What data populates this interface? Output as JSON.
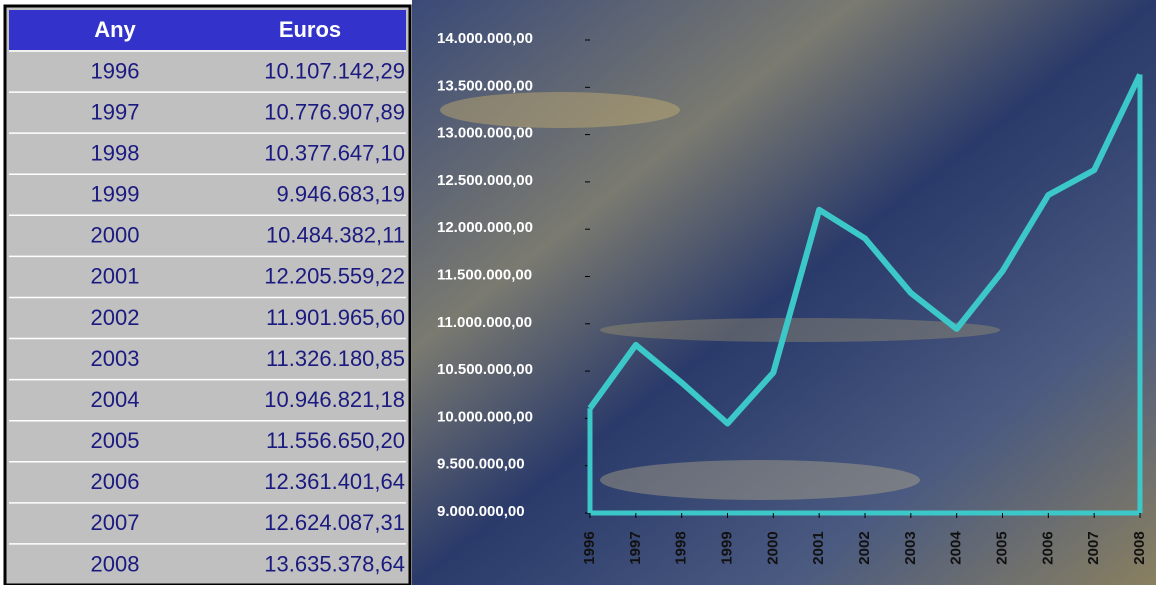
{
  "table": {
    "header": [
      "Any",
      "Euros"
    ],
    "rows": [
      [
        "1996",
        "10.107.142,29"
      ],
      [
        "1997",
        "10.776.907,89"
      ],
      [
        "1998",
        "10.377.647,10"
      ],
      [
        "1999",
        "9.946.683,19"
      ],
      [
        "2000",
        "10.484.382,11"
      ],
      [
        "2001",
        "12.205.559,22"
      ],
      [
        "2002",
        "11.901.965,60"
      ],
      [
        "2003",
        "11.326.180,85"
      ],
      [
        "2004",
        "10.946.821,18"
      ],
      [
        "2005",
        "11.556.650,20"
      ],
      [
        "2006",
        "12.361.401,64"
      ],
      [
        "2007",
        "12.624.087,31"
      ],
      [
        "2008",
        "13.635.378,64"
      ]
    ]
  },
  "chart_data": {
    "type": "line",
    "color": "#3cc8c8",
    "categories": [
      "1996",
      "1997",
      "1998",
      "1999",
      "2000",
      "2001",
      "2002",
      "2003",
      "2004",
      "2005",
      "2006",
      "2007",
      "2008"
    ],
    "values": [
      10107142.29,
      10776907.89,
      10377647.1,
      9946683.19,
      10484382.11,
      12205559.22,
      11901965.6,
      11326180.85,
      10946821.18,
      11556650.2,
      12361401.64,
      12624087.31,
      13635378.64
    ],
    "ylim": [
      9000000,
      14000000
    ],
    "yticks": [
      {
        "value": 9000000,
        "label": "9.000.000,00"
      },
      {
        "value": 9500000,
        "label": "9.500.000,00"
      },
      {
        "value": 10000000,
        "label": "10.000.000,00"
      },
      {
        "value": 10500000,
        "label": "10.500.000,00"
      },
      {
        "value": 11000000,
        "label": "11.000.000,00"
      },
      {
        "value": 11500000,
        "label": "11.500.000,00"
      },
      {
        "value": 12000000,
        "label": "12.000.000,00"
      },
      {
        "value": 12500000,
        "label": "12.500.000,00"
      },
      {
        "value": 13000000,
        "label": "13.000.000,00"
      },
      {
        "value": 13500000,
        "label": "13.500.000,00"
      },
      {
        "value": 14000000,
        "label": "14.000.000,00"
      }
    ]
  }
}
